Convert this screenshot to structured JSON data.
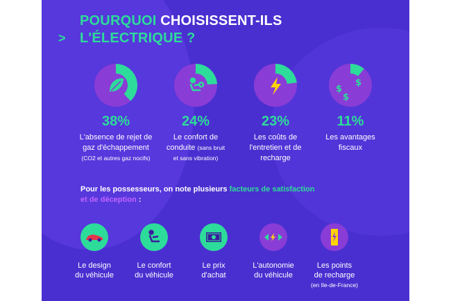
{
  "colors": {
    "background": "#4a2fd0",
    "accent_green": "#2ddc9a",
    "accent_purple": "#c264ff",
    "text": "#ffffff",
    "yellow": "#ffd400",
    "red": "#e6344a"
  },
  "title": {
    "arrow": ">",
    "line1_green": "POURQUOI",
    "line1_white": "CHOISISSENT-ILS",
    "line2": "L'ÉLECTRIQUE ?"
  },
  "stats": [
    {
      "percent": "38%",
      "value": 38,
      "icon": "leaf-icon",
      "line1": "L'absence de rejet de",
      "line2": "gaz d'échappement",
      "line3": "(CO2 et autres gaz nocifs)"
    },
    {
      "percent": "24%",
      "value": 24,
      "icon": "driver-seat-icon",
      "line1": "Le confort de",
      "line2": "conduite",
      "line2_small": "(sans bruit",
      "line3": "et sans vibration)"
    },
    {
      "percent": "23%",
      "value": 23,
      "icon": "lightning-icon",
      "line1": "Les coûts de",
      "line2": "l'entretien et de",
      "line3": "recharge"
    },
    {
      "percent": "11%",
      "value": 11,
      "icon": "dollar-signs-icon",
      "line1": "Les avantages",
      "line2": "fiscaux"
    }
  ],
  "intro": {
    "part1": "Pour les possesseurs, on note plusieurs ",
    "part2_green": "facteurs de satisfaction",
    "part3_purple": "et de déception",
    "part4": " :"
  },
  "factors": [
    {
      "icon": "sports-car-icon",
      "color": "green",
      "line1": "Le design",
      "line2": "du véhicule"
    },
    {
      "icon": "driver-seat-icon",
      "color": "green",
      "line1": "Le confort",
      "line2": "du véhicule"
    },
    {
      "icon": "banknote-icon",
      "color": "green",
      "line1": "Le prix",
      "line2": "d'achat"
    },
    {
      "icon": "range-arrows-icon",
      "color": "purple",
      "line1": "L'autonomie",
      "line2": "du véhicule"
    },
    {
      "icon": "charging-point-icon",
      "color": "purple",
      "line1": "Les points",
      "line2": "de recharge",
      "line3": "(en Ile-de-France)"
    }
  ]
}
